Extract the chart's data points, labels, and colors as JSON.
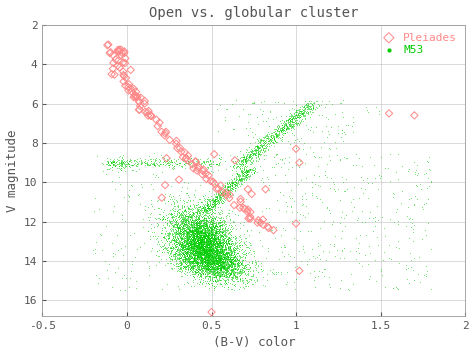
{
  "title": "Open vs. globular cluster",
  "xlabel": "(B-V) color",
  "ylabel": "V magnitude",
  "xlim": [
    -0.5,
    2.0
  ],
  "ylim": [
    2.0,
    16.8
  ],
  "pleiades_color": "#FF8888",
  "m53_color": "#00CC00",
  "legend_pleiades_label": "Pleiades",
  "legend_m53_label": "M53",
  "background_color": "#ffffff",
  "grid_color": "#aaaaaa",
  "title_color": "#555555",
  "axis_label_color": "#555555",
  "tick_label_color": "#555555",
  "figsize": [
    4.74,
    3.55
  ],
  "dpi": 100
}
